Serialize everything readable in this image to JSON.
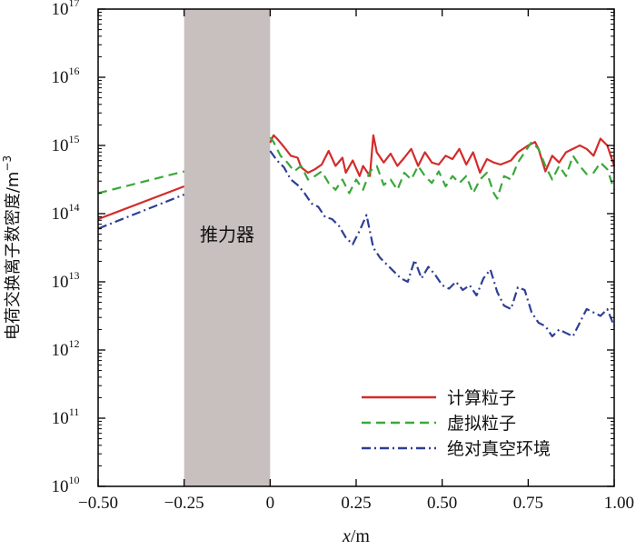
{
  "chart_data": {
    "type": "line",
    "xlabel": {
      "var": "x",
      "unit": "/m"
    },
    "ylabel": {
      "text": "电荷交换离子数密度/m",
      "sup": "−3"
    },
    "xlim": [
      -0.5,
      1.0
    ],
    "ylim_exp": [
      10,
      17
    ],
    "yscale": "log",
    "x_ticks": [
      {
        "v": -0.5,
        "label": "−0.50"
      },
      {
        "v": -0.25,
        "label": "−0.25"
      },
      {
        "v": 0,
        "label": "0"
      },
      {
        "v": 0.25,
        "label": "0.25"
      },
      {
        "v": 0.5,
        "label": "0.50"
      },
      {
        "v": 0.75,
        "label": "0.75"
      },
      {
        "v": 1.0,
        "label": "1.00"
      }
    ],
    "y_ticks": [
      {
        "v": 10,
        "base": "10",
        "exp": "10"
      },
      {
        "v": 11,
        "base": "10",
        "exp": "11"
      },
      {
        "v": 12,
        "base": "10",
        "exp": "12"
      },
      {
        "v": 13,
        "base": "10",
        "exp": "13"
      },
      {
        "v": 14,
        "base": "10",
        "exp": "14"
      },
      {
        "v": 15,
        "base": "10",
        "exp": "15"
      },
      {
        "v": 16,
        "base": "10",
        "exp": "16"
      },
      {
        "v": 17,
        "base": "10",
        "exp": "17"
      }
    ],
    "shaded_region": {
      "x0": -0.25,
      "x1": 0.0,
      "label": "推力器",
      "color": "#c8c0bf"
    },
    "series": [
      {
        "name": "计算粒子",
        "color": "#d42b2b",
        "dash": "solid",
        "segments": [
          [
            [
              -0.5,
              13.92
            ],
            [
              -0.25,
              14.4
            ]
          ],
          [
            [
              0.0,
              15.04
            ],
            [
              0.01,
              15.15
            ],
            [
              0.02,
              15.1
            ],
            [
              0.04,
              14.98
            ],
            [
              0.06,
              14.85
            ],
            [
              0.08,
              14.82
            ],
            [
              0.09,
              14.68
            ],
            [
              0.11,
              14.6
            ],
            [
              0.13,
              14.65
            ],
            [
              0.15,
              14.72
            ],
            [
              0.17,
              14.92
            ],
            [
              0.19,
              14.7
            ],
            [
              0.21,
              14.82
            ],
            [
              0.22,
              14.6
            ],
            [
              0.24,
              14.78
            ],
            [
              0.26,
              14.55
            ],
            [
              0.27,
              14.7
            ],
            [
              0.29,
              14.55
            ],
            [
              0.3,
              15.15
            ],
            [
              0.31,
              14.9
            ],
            [
              0.33,
              14.75
            ],
            [
              0.35,
              14.88
            ],
            [
              0.37,
              14.7
            ],
            [
              0.39,
              14.82
            ],
            [
              0.41,
              14.95
            ],
            [
              0.43,
              14.7
            ],
            [
              0.45,
              14.9
            ],
            [
              0.47,
              14.75
            ],
            [
              0.49,
              14.72
            ],
            [
              0.51,
              14.85
            ],
            [
              0.53,
              14.8
            ],
            [
              0.55,
              14.95
            ],
            [
              0.57,
              14.72
            ],
            [
              0.59,
              14.9
            ],
            [
              0.61,
              14.6
            ],
            [
              0.63,
              14.8
            ],
            [
              0.65,
              14.75
            ],
            [
              0.67,
              14.72
            ],
            [
              0.7,
              14.78
            ],
            [
              0.72,
              14.9
            ],
            [
              0.75,
              15.0
            ],
            [
              0.77,
              15.05
            ],
            [
              0.78,
              14.95
            ],
            [
              0.8,
              14.62
            ],
            [
              0.82,
              14.85
            ],
            [
              0.84,
              14.75
            ],
            [
              0.86,
              14.9
            ],
            [
              0.88,
              14.95
            ],
            [
              0.9,
              15.0
            ],
            [
              0.92,
              14.95
            ],
            [
              0.94,
              14.85
            ],
            [
              0.96,
              15.1
            ],
            [
              0.98,
              15.0
            ],
            [
              1.0,
              14.7
            ]
          ]
        ]
      },
      {
        "name": "虚拟粒子",
        "color": "#3aa83a",
        "dash": "10 6",
        "segments": [
          [
            [
              -0.5,
              14.3
            ],
            [
              -0.25,
              14.62
            ]
          ],
          [
            [
              0.0,
              15.12
            ],
            [
              0.01,
              15.05
            ],
            [
              0.03,
              14.85
            ],
            [
              0.05,
              14.75
            ],
            [
              0.07,
              14.62
            ],
            [
              0.09,
              14.7
            ],
            [
              0.11,
              14.5
            ],
            [
              0.13,
              14.55
            ],
            [
              0.15,
              14.62
            ],
            [
              0.17,
              14.45
            ],
            [
              0.19,
              14.35
            ],
            [
              0.21,
              14.5
            ],
            [
              0.23,
              14.3
            ],
            [
              0.25,
              14.5
            ],
            [
              0.27,
              14.35
            ],
            [
              0.29,
              14.62
            ],
            [
              0.31,
              14.7
            ],
            [
              0.33,
              14.42
            ],
            [
              0.35,
              14.5
            ],
            [
              0.37,
              14.35
            ],
            [
              0.39,
              14.6
            ],
            [
              0.41,
              14.5
            ],
            [
              0.43,
              14.7
            ],
            [
              0.45,
              14.55
            ],
            [
              0.47,
              14.45
            ],
            [
              0.49,
              14.62
            ],
            [
              0.51,
              14.4
            ],
            [
              0.53,
              14.55
            ],
            [
              0.55,
              14.45
            ],
            [
              0.57,
              14.55
            ],
            [
              0.59,
              14.3
            ],
            [
              0.61,
              14.5
            ],
            [
              0.63,
              14.6
            ],
            [
              0.65,
              14.3
            ],
            [
              0.66,
              14.22
            ],
            [
              0.68,
              14.55
            ],
            [
              0.7,
              14.5
            ],
            [
              0.72,
              14.75
            ],
            [
              0.74,
              14.9
            ],
            [
              0.76,
              15.05
            ],
            [
              0.78,
              14.95
            ],
            [
              0.8,
              14.7
            ],
            [
              0.82,
              14.5
            ],
            [
              0.84,
              14.7
            ],
            [
              0.86,
              14.55
            ],
            [
              0.88,
              14.85
            ],
            [
              0.9,
              14.7
            ],
            [
              0.92,
              14.58
            ],
            [
              0.94,
              14.6
            ],
            [
              0.96,
              14.75
            ],
            [
              0.98,
              14.65
            ],
            [
              1.0,
              14.35
            ]
          ]
        ]
      },
      {
        "name": "绝对真空环境",
        "color": "#2e3e96",
        "dash": "10 4 2 4",
        "segments": [
          [
            [
              -0.5,
              13.78
            ],
            [
              -0.25,
              14.28
            ]
          ],
          [
            [
              0.0,
              14.92
            ],
            [
              0.02,
              14.78
            ],
            [
              0.04,
              14.68
            ],
            [
              0.06,
              14.5
            ],
            [
              0.08,
              14.42
            ],
            [
              0.1,
              14.3
            ],
            [
              0.12,
              14.15
            ],
            [
              0.14,
              14.1
            ],
            [
              0.16,
              13.95
            ],
            [
              0.18,
              13.92
            ],
            [
              0.2,
              13.82
            ],
            [
              0.22,
              13.65
            ],
            [
              0.24,
              13.55
            ],
            [
              0.26,
              13.75
            ],
            [
              0.28,
              13.98
            ],
            [
              0.3,
              13.5
            ],
            [
              0.32,
              13.35
            ],
            [
              0.34,
              13.25
            ],
            [
              0.36,
              13.15
            ],
            [
              0.38,
              13.05
            ],
            [
              0.4,
              13.0
            ],
            [
              0.42,
              13.32
            ],
            [
              0.44,
              13.05
            ],
            [
              0.46,
              13.22
            ],
            [
              0.48,
              13.1
            ],
            [
              0.5,
              12.95
            ],
            [
              0.52,
              12.9
            ],
            [
              0.54,
              13.0
            ],
            [
              0.56,
              12.88
            ],
            [
              0.58,
              12.95
            ],
            [
              0.6,
              12.8
            ],
            [
              0.62,
              13.05
            ],
            [
              0.64,
              13.18
            ],
            [
              0.66,
              12.85
            ],
            [
              0.68,
              12.65
            ],
            [
              0.7,
              12.6
            ],
            [
              0.72,
              12.92
            ],
            [
              0.74,
              12.88
            ],
            [
              0.76,
              12.55
            ],
            [
              0.78,
              12.4
            ],
            [
              0.8,
              12.35
            ],
            [
              0.82,
              12.2
            ],
            [
              0.84,
              12.3
            ],
            [
              0.86,
              12.25
            ],
            [
              0.88,
              12.2
            ],
            [
              0.9,
              12.4
            ],
            [
              0.92,
              12.6
            ],
            [
              0.94,
              12.55
            ],
            [
              0.96,
              12.5
            ],
            [
              0.98,
              12.6
            ],
            [
              1.0,
              12.35
            ]
          ]
        ]
      }
    ]
  }
}
